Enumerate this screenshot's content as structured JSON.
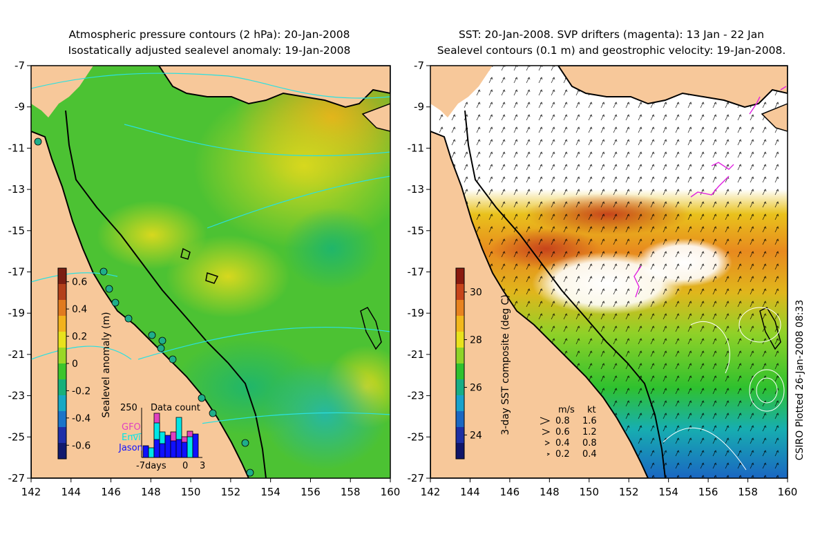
{
  "left_panel": {
    "title_line1": "Atmospheric pressure contours (2 hPa): 20-Jan-2008",
    "title_line2": "Isostatically adjusted sealevel anomaly: 19-Jan-2008",
    "x_ticks": [
      "142",
      "144",
      "146",
      "148",
      "150",
      "152",
      "154",
      "156",
      "158",
      "160"
    ],
    "y_ticks": [
      "-7",
      "-9",
      "-11",
      "-13",
      "-15",
      "-17",
      "-19",
      "-21",
      "-23",
      "-25",
      "-27"
    ],
    "colorbar": {
      "label": "Sealevel anomaly (m)",
      "ticks": [
        "0.6",
        "0.4",
        "0.2",
        "0",
        "-0.2",
        "-0.4",
        "-0.6"
      ],
      "colors": [
        "#7a1e12",
        "#b3401a",
        "#e07a1f",
        "#f2b21c",
        "#e8e11c",
        "#9ad826",
        "#3cc52c",
        "#18b07a",
        "#16a8c4",
        "#1a74c9",
        "#1e2fa8",
        "#111a6e"
      ]
    },
    "inset": {
      "title": "Data count",
      "ymax_label": "250",
      "legend": [
        {
          "name": "GFO",
          "color": "#e040c0"
        },
        {
          "name": "Envi",
          "color": "#00e6e6"
        },
        {
          "name": "Jason",
          "color": "#1010ff"
        }
      ],
      "x_labels": [
        "-7days",
        "0",
        "3"
      ]
    }
  },
  "right_panel": {
    "title_line1": "SST: 20-Jan-2008. SVP drifters (magenta): 13 Jan - 22 Jan",
    "title_line2": "Sealevel contours (0.1 m) and geostrophic velocity: 19-Jan-2008.",
    "x_ticks": [
      "142",
      "144",
      "146",
      "148",
      "150",
      "152",
      "154",
      "156",
      "158",
      "160"
    ],
    "y_ticks": [
      "-7",
      "-9",
      "-11",
      "-13",
      "-15",
      "-17",
      "-19",
      "-21",
      "-23",
      "-25",
      "-27"
    ],
    "colorbar": {
      "label": "3-day SST composite (deg C)",
      "ticks": [
        "30",
        "28",
        "26",
        "24"
      ],
      "colors": [
        "#8a1a0f",
        "#c7441b",
        "#e8831f",
        "#f2b81c",
        "#e9e21c",
        "#8ed428",
        "#2fc12e",
        "#17ae86",
        "#18a2cc",
        "#1a67c2",
        "#1d2fa3",
        "#101569"
      ]
    },
    "velocity_legend": {
      "units": [
        "m/s",
        "kt"
      ],
      "rows": [
        [
          "0.8",
          "1.6"
        ],
        [
          "0.6",
          "1.2"
        ],
        [
          "0.4",
          "0.8"
        ],
        [
          "0.2",
          "0.4"
        ]
      ]
    },
    "credit": "CSIRO Plotted 26-Jan-2008 08:33"
  }
}
